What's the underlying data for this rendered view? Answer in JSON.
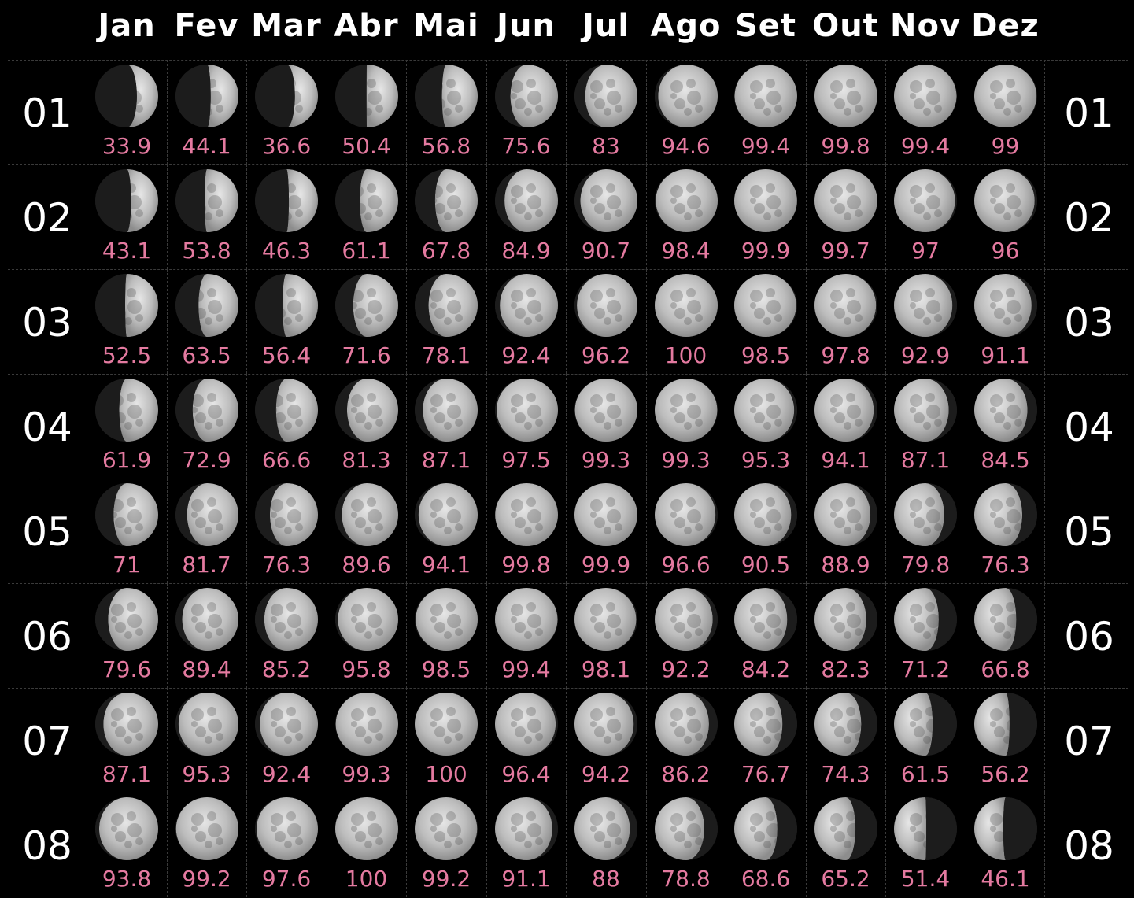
{
  "months": [
    "Jan",
    "Fev",
    "Mar",
    "Abr",
    "Mai",
    "Jun",
    "Jul",
    "Ago",
    "Set",
    "Out",
    "Nov",
    "Dez"
  ],
  "rows": [
    {
      "day": "01",
      "values": [
        33.9,
        44.1,
        36.6,
        50.4,
        56.8,
        75.6,
        83,
        94.6,
        99.4,
        99.8,
        99.4,
        99
      ],
      "waxing": [
        true,
        true,
        true,
        true,
        true,
        true,
        true,
        true,
        true,
        false,
        false,
        false
      ]
    },
    {
      "day": "02",
      "values": [
        43.1,
        53.8,
        46.3,
        61.1,
        67.8,
        84.9,
        90.7,
        98.4,
        99.9,
        99.7,
        97,
        96
      ],
      "waxing": [
        true,
        true,
        true,
        true,
        true,
        true,
        true,
        true,
        false,
        false,
        false,
        false
      ]
    },
    {
      "day": "03",
      "values": [
        52.5,
        63.5,
        56.4,
        71.6,
        78.1,
        92.4,
        96.2,
        100,
        98.5,
        97.8,
        92.9,
        91.1
      ],
      "waxing": [
        true,
        true,
        true,
        true,
        true,
        true,
        true,
        false,
        false,
        false,
        false,
        false
      ]
    },
    {
      "day": "04",
      "values": [
        61.9,
        72.9,
        66.6,
        81.3,
        87.1,
        97.5,
        99.3,
        99.3,
        95.3,
        94.1,
        87.1,
        84.5
      ],
      "waxing": [
        true,
        true,
        true,
        true,
        true,
        true,
        true,
        false,
        false,
        false,
        false,
        false
      ]
    },
    {
      "day": "05",
      "values": [
        71,
        81.7,
        76.3,
        89.6,
        94.1,
        99.8,
        99.9,
        96.6,
        90.5,
        88.9,
        79.8,
        76.3
      ],
      "waxing": [
        true,
        true,
        true,
        true,
        true,
        true,
        false,
        false,
        false,
        false,
        false,
        false
      ]
    },
    {
      "day": "06",
      "values": [
        79.6,
        89.4,
        85.2,
        95.8,
        98.5,
        99.4,
        98.1,
        92.2,
        84.2,
        82.3,
        71.2,
        66.8
      ],
      "waxing": [
        true,
        true,
        true,
        true,
        true,
        false,
        false,
        false,
        false,
        false,
        false,
        false
      ]
    },
    {
      "day": "07",
      "values": [
        87.1,
        95.3,
        92.4,
        99.3,
        100,
        96.4,
        94.2,
        86.2,
        76.7,
        74.3,
        61.5,
        56.2
      ],
      "waxing": [
        true,
        true,
        true,
        true,
        false,
        false,
        false,
        false,
        false,
        false,
        false,
        false
      ]
    },
    {
      "day": "08",
      "values": [
        93.8,
        99.2,
        97.6,
        100,
        99.2,
        91.1,
        88,
        78.8,
        68.6,
        65.2,
        51.4,
        46.1
      ],
      "waxing": [
        true,
        true,
        true,
        false,
        false,
        false,
        false,
        false,
        false,
        false,
        false,
        false
      ]
    }
  ],
  "colors": {
    "illum_text": "#e47aa0",
    "moon_light": "#c9c9c9",
    "moon_dark": "#1c1c1c",
    "background": "#000000"
  }
}
